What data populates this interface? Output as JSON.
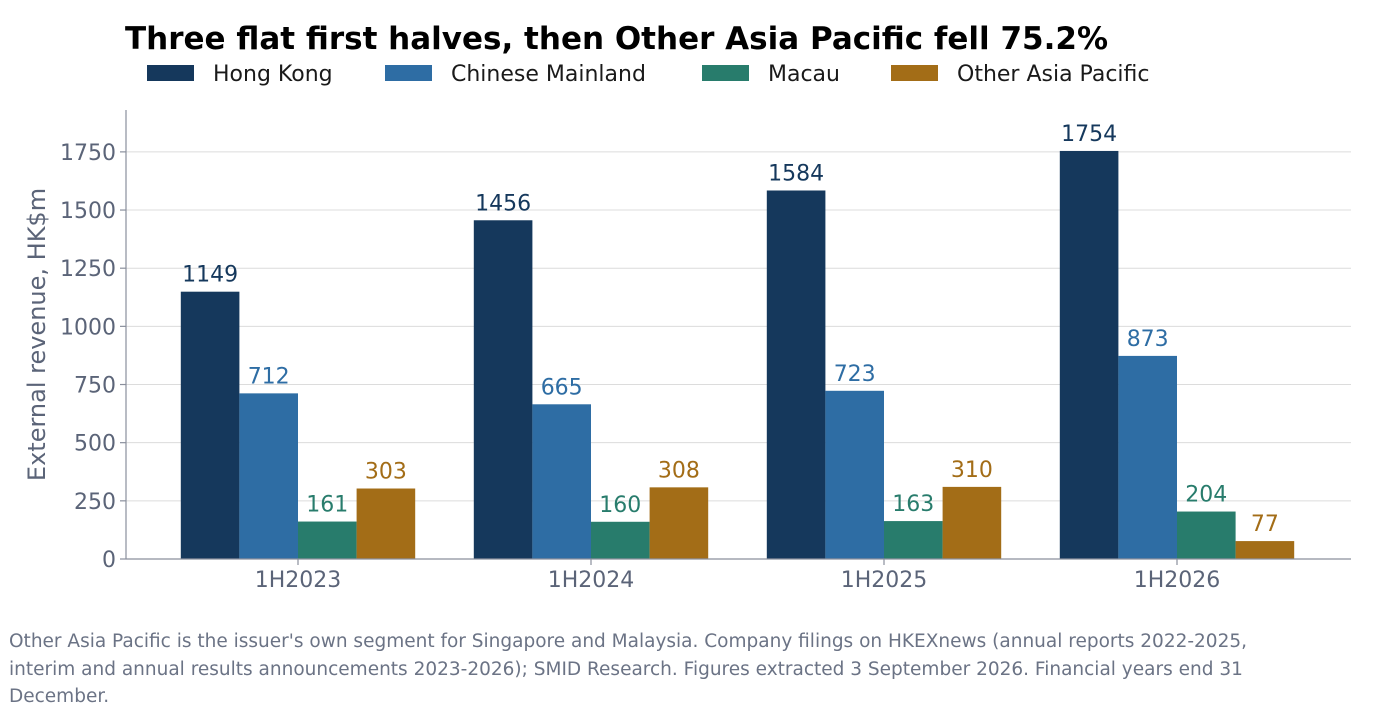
{
  "chart_data": {
    "type": "bar",
    "title": "Three flat first halves, then Other Asia Pacific fell 75.2%",
    "xlabel": "",
    "ylabel": "External revenue, HK$m",
    "categories": [
      "1H2023",
      "1H2024",
      "1H2025",
      "1H2026"
    ],
    "series": [
      {
        "name": "Hong Kong",
        "values": [
          1149,
          1456,
          1584,
          1754
        ],
        "color": "#15385c"
      },
      {
        "name": "Chinese Mainland",
        "values": [
          712,
          665,
          723,
          873
        ],
        "color": "#2e6da4"
      },
      {
        "name": "Macau",
        "values": [
          161,
          160,
          163,
          204
        ],
        "color": "#287c6c"
      },
      {
        "name": "Other Asia Pacific",
        "values": [
          303,
          308,
          310,
          77
        ],
        "color": "#a36d17"
      }
    ],
    "ylim": [
      0,
      1930
    ],
    "yticks": [
      0,
      250,
      500,
      750,
      1000,
      1250,
      1500,
      1750
    ],
    "grid": true,
    "legend_position": "top"
  },
  "footnote": "Other Asia Pacific is the issuer's own segment for Singapore and Malaysia. Company filings on HKEXnews (annual reports 2022-2025, interim and annual results announcements 2023-2026); SMID Research. Figures extracted 3 September 2026. Financial years end 31 December."
}
